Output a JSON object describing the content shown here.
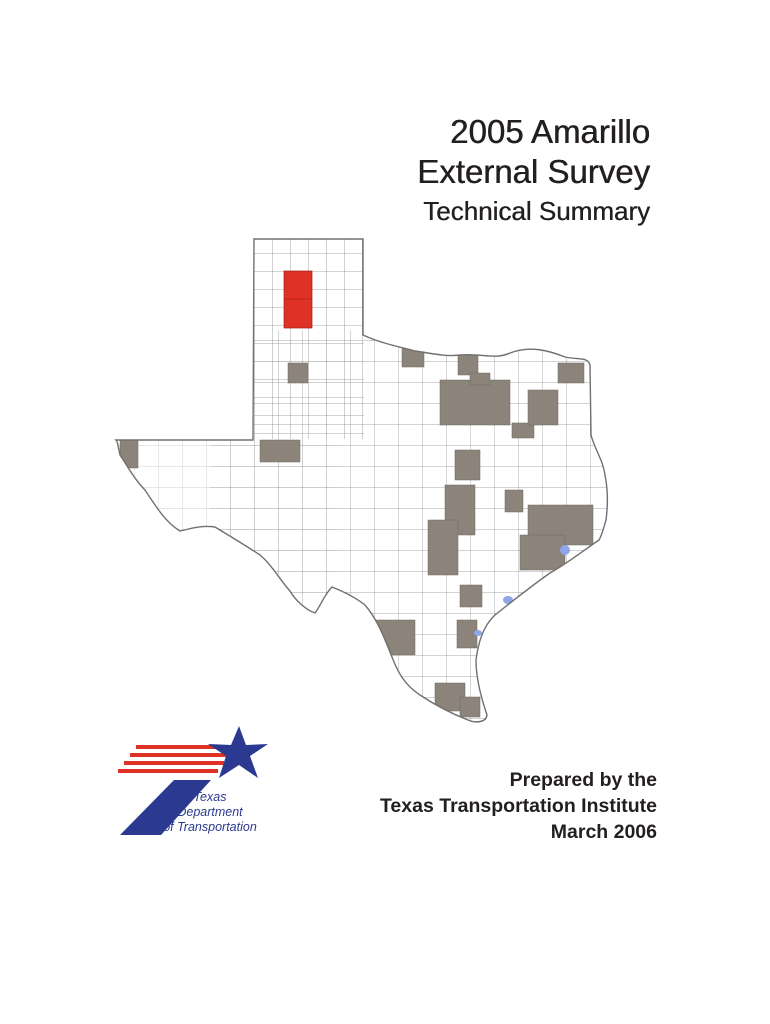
{
  "title": {
    "line1": "2005 Amarillo",
    "line2": "External Survey",
    "subtitle": "Technical Summary"
  },
  "map": {
    "image": "Texas county map",
    "colors": {
      "survey_counties_highlight": "#e03127",
      "other_survey_counties": "#8c847a",
      "county_fill": "#ffffff",
      "county_border": "#808080",
      "water": "#8ea6e8"
    }
  },
  "logo": {
    "image": "TxDOT logo",
    "line1": "Texas",
    "line2": "Department",
    "line3": "of Transportation",
    "colors": {
      "red": "#e03127",
      "blue": "#2b3990"
    }
  },
  "prepared": {
    "line1": "Prepared by the",
    "line2": "Texas Transportation Institute",
    "line3": "March 2006"
  }
}
